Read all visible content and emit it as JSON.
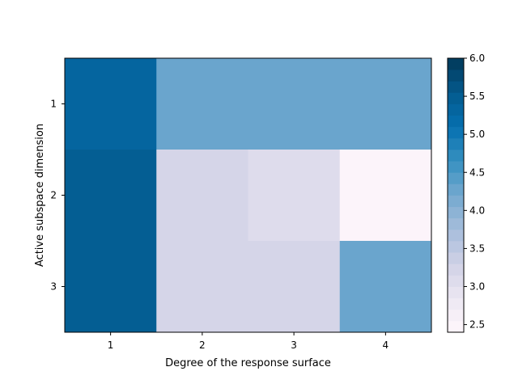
{
  "chart_data": {
    "type": "heatmap",
    "title": "",
    "xlabel": "Degree of the response surface",
    "ylabel": "Active subspace dimension",
    "x_categories": [
      "1",
      "2",
      "3",
      "4"
    ],
    "y_categories": [
      "1",
      "2",
      "3"
    ],
    "values": [
      [
        5.3,
        4.3,
        4.3,
        4.3
      ],
      [
        5.5,
        3.2,
        3.05,
        2.45
      ],
      [
        5.5,
        3.2,
        3.3,
        4.2
      ]
    ],
    "colormap": "PuBu",
    "colorbar": {
      "min": 2.4,
      "max": 6.0,
      "ticks": [
        "2.5",
        "3.0",
        "3.5",
        "4.0",
        "4.5",
        "5.0",
        "5.5",
        "6.0"
      ],
      "levels": 24
    },
    "grid": false,
    "legend": "none"
  }
}
